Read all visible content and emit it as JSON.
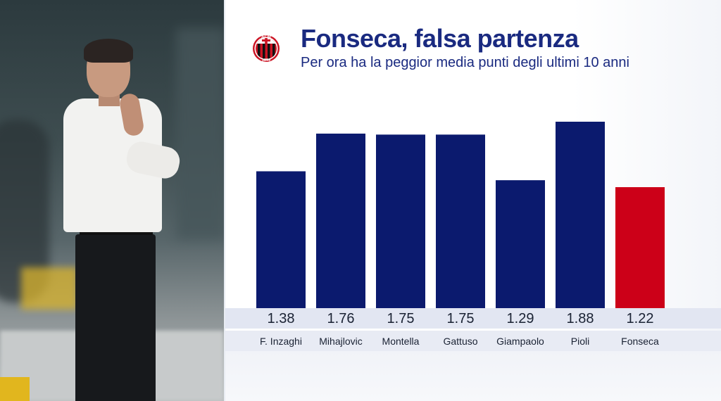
{
  "header": {
    "title": "Fonseca, falsa partenza",
    "subtitle": "Per ora ha la peggior media punti degli ultimi 10 anni",
    "logo": {
      "icon": "ac-milan-crest-icon",
      "text_top": "ACM",
      "year": "1899",
      "colors": {
        "red": "#cc1424",
        "black": "#111111",
        "white": "#ffffff"
      }
    }
  },
  "chart_data": {
    "type": "bar",
    "categories": [
      "F. Inzaghi",
      "Mihajlovic",
      "Montella",
      "Gattuso",
      "Giampaolo",
      "Pioli",
      "Fonseca"
    ],
    "values": [
      1.38,
      1.76,
      1.75,
      1.75,
      1.29,
      1.88,
      1.22
    ],
    "value_labels": [
      "1.38",
      "1.76",
      "1.75",
      "1.75",
      "1.29",
      "1.88",
      "1.22"
    ],
    "highlight_index": 6,
    "colors": {
      "bar": "#0b1a6e",
      "highlight": "#cc0018",
      "text": "#1a2233"
    },
    "title": "",
    "xlabel": "",
    "ylabel": "",
    "ylim": [
      0,
      1.88
    ],
    "grid": false,
    "legend": "none"
  }
}
